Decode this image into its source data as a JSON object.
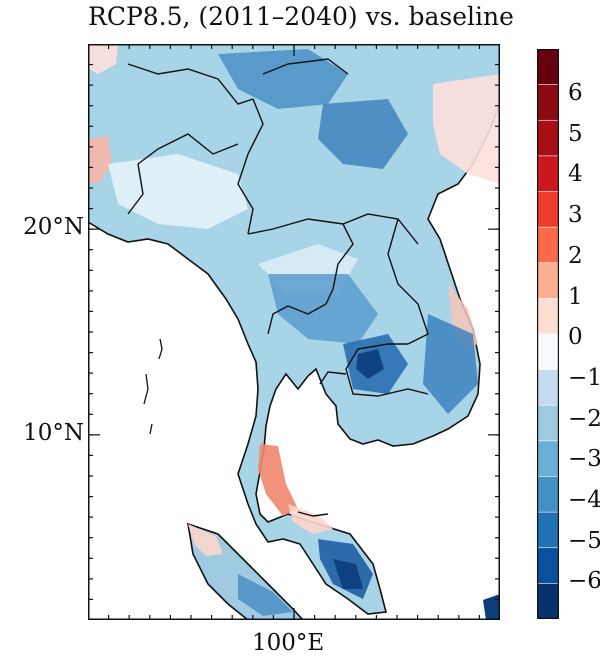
{
  "title": "RCP8.5, (2011–2040) vs. baseline",
  "map": {
    "lat_ticks": [
      {
        "value": 20,
        "label": "20°N"
      },
      {
        "value": 10,
        "label": "10°N"
      }
    ],
    "lon_ticks": [
      {
        "value": 100,
        "label": "100°E"
      }
    ],
    "extent": {
      "lon_min": 90,
      "lon_max": 110,
      "lat_min": 1,
      "lat_max": 29
    }
  },
  "colorbar": {
    "labels": [
      "6",
      "5",
      "4",
      "3",
      "2",
      "1",
      "0",
      "−1",
      "−2",
      "−3",
      "−4",
      "−5",
      "−6"
    ],
    "colors_top_to_bottom": [
      "#67000d",
      "#8b0a14",
      "#a50f15",
      "#cb181d",
      "#ef3b2c",
      "#fb6a4a",
      "#fcae91",
      "#fee0d2",
      "#f7fbff",
      "#c6dbef",
      "#9ecae1",
      "#6baed6",
      "#4292c6",
      "#2171b5",
      "#08519c",
      "#08306b"
    ]
  },
  "colors": {
    "frame": "#111111",
    "land_base": "#a8d4e8",
    "sea": "#ffffff"
  }
}
